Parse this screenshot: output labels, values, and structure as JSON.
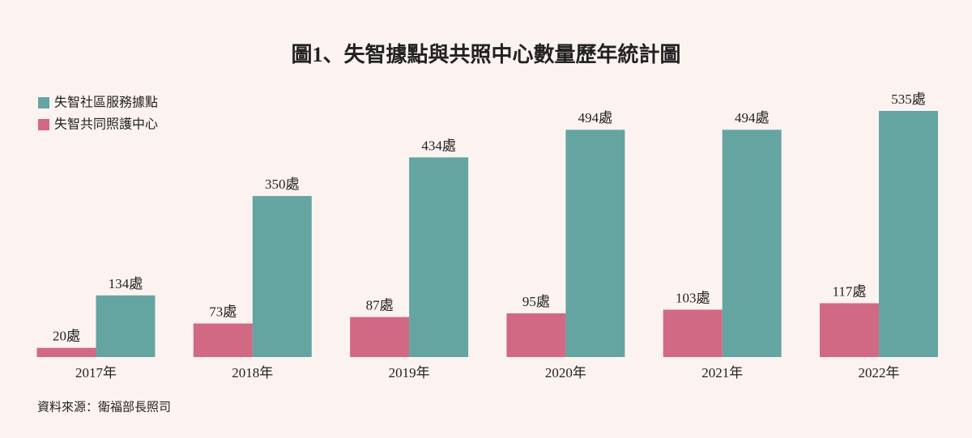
{
  "chart_data": {
    "type": "bar",
    "title": "圖1、失智據點與共照中心數量歷年統計圖",
    "categories": [
      "2017年",
      "2018年",
      "2019年",
      "2020年",
      "2021年",
      "2022年"
    ],
    "series": [
      {
        "name": "失智社區服務據點",
        "color": "#64a5a2",
        "values": [
          134,
          350,
          434,
          494,
          494,
          535
        ],
        "value_labels": [
          "134處",
          "350處",
          "434處",
          "494處",
          "494處",
          "535處"
        ]
      },
      {
        "name": "失智共同照護中心",
        "color": "#d26984",
        "values": [
          20,
          73,
          87,
          95,
          103,
          117
        ],
        "value_labels": [
          "20處",
          "73處",
          "87處",
          "95處",
          "103處",
          "117處"
        ]
      }
    ],
    "source": "資料來源：衛福部長照司"
  }
}
